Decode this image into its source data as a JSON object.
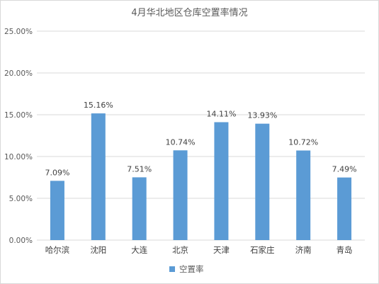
{
  "chart_data": {
    "type": "bar",
    "title": "4月华北地区仓库空置率情况",
    "categories": [
      "哈尔滨",
      "沈阳",
      "大连",
      "北京",
      "天津",
      "石家庄",
      "济南",
      "青岛"
    ],
    "series": [
      {
        "name": "空置率",
        "values": [
          7.09,
          15.16,
          7.51,
          10.74,
          14.11,
          13.93,
          10.72,
          7.49
        ],
        "value_labels": [
          "7.09%",
          "15.16%",
          "7.51%",
          "10.74%",
          "14.11%",
          "13.93%",
          "10.72%",
          "7.49%"
        ]
      }
    ],
    "y_ticks": [
      "0.00%",
      "5.00%",
      "10.00%",
      "15.00%",
      "20.00%",
      "25.00%"
    ],
    "ylim": [
      0,
      25
    ],
    "grid": true,
    "legend_position": "bottom",
    "bar_color": "#5b9bd5",
    "grid_color": "#d9d9d9"
  }
}
